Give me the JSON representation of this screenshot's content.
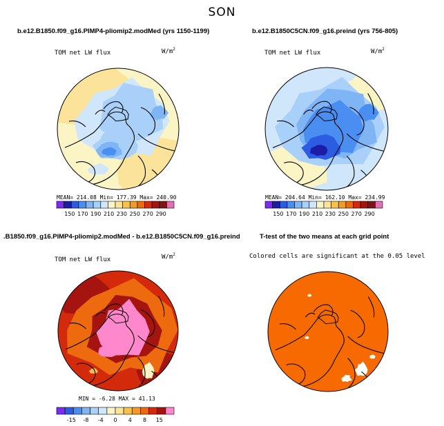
{
  "figure": {
    "title": "SON"
  },
  "colors": {
    "abs_scale": [
      "#7b2cf0",
      "#1c1ca6",
      "#2c5de0",
      "#4a8ef2",
      "#7fb4f5",
      "#a9d0f8",
      "#cfe6fb",
      "#fbf5c6",
      "#fbe49a",
      "#f6c14d",
      "#f29a26",
      "#ee6a0f",
      "#d42a0c",
      "#a5140e",
      "#7e1414",
      "#e070b8"
    ],
    "diff_scale": [
      "#7b2cf0",
      "#2c5de0",
      "#4a8ef2",
      "#7fb4f5",
      "#a9d0f8",
      "#cfe6fb",
      "#fbf5c6",
      "#fbe49a",
      "#f6c14d",
      "#f29a26",
      "#ee6a0f",
      "#d42a0c",
      "#a5140e",
      "#ff88cc"
    ],
    "significant": "#f76a00",
    "coast": "#000000"
  },
  "chart_data": [
    {
      "type": "heatmap",
      "projection": "north-polar-stereographic",
      "title": "b.e12.B1850.f09_g16.PIMP4-pliomip2.modMed (yrs 1150-1199)",
      "subtitle": "TOM net LW flux",
      "units": "W/m",
      "units_sup": "2",
      "stats": {
        "mean": "214.08",
        "min": "177.39",
        "max": "240.90",
        "text": "MEAN= 214.08   Min= 177.39   Max= 240.90"
      },
      "colorbar_ticks": [
        "150",
        "170",
        "190",
        "210",
        "230",
        "250",
        "270",
        "290"
      ],
      "field_range": [
        177.39,
        240.9
      ]
    },
    {
      "type": "heatmap",
      "projection": "north-polar-stereographic",
      "title": "b.e12.B1850C5CN.f09_g16.preind (yrs 756-805)",
      "subtitle": "TOM net LW flux",
      "units": "W/m",
      "units_sup": "2",
      "stats": {
        "mean": "204.64",
        "min": "162.10",
        "max": "234.99",
        "text": "MEAN= 204.64   Min= 162.10   Max= 234.99"
      },
      "colorbar_ticks": [
        "150",
        "170",
        "190",
        "210",
        "230",
        "250",
        "270",
        "290"
      ],
      "field_range": [
        162.1,
        234.99
      ]
    },
    {
      "type": "heatmap",
      "projection": "north-polar-stereographic",
      "title": ".B1850.f09_g16.PIMP4-pliomip2.modMed - b.e12.B1850C5CN.f09_g16.preind",
      "subtitle": "TOM net LW flux",
      "units": "W/m",
      "units_sup": "2",
      "stats": {
        "min": "-6.28",
        "max": "41.13",
        "text": "MIN =  -6.28 MAX =  41.13"
      },
      "colorbar_ticks": [
        "-15",
        "-8",
        "-4",
        "0",
        "4",
        "8",
        "15"
      ],
      "field_range": [
        -6.28,
        41.13
      ]
    },
    {
      "type": "heatmap",
      "projection": "north-polar-stereographic",
      "title": "T-test of the two means at each grid point",
      "subtitle": "Colored cells are significant at the 0.05 level",
      "significance_level": 0.05
    }
  ]
}
